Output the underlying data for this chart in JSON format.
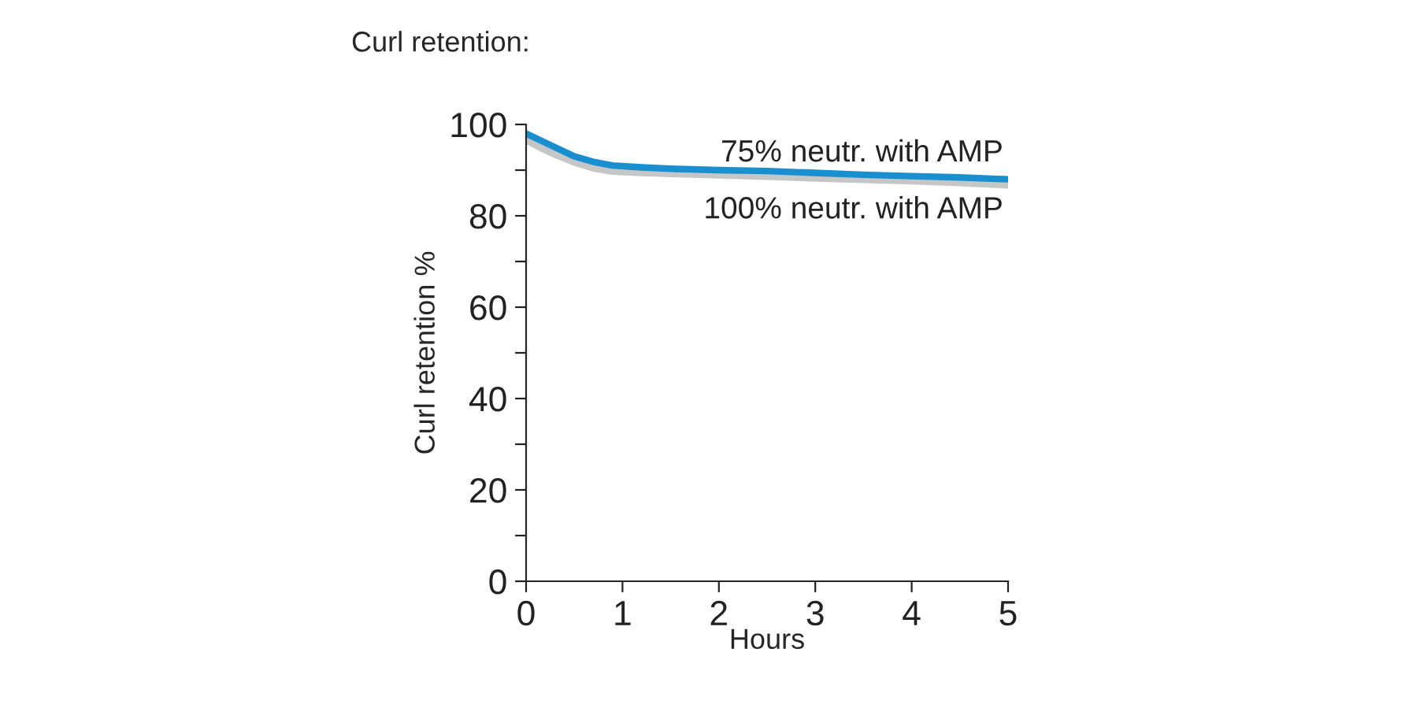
{
  "chart_data": {
    "type": "line",
    "title": "Curl retention:",
    "xlabel": "Hours",
    "ylabel": "Curl retention %",
    "xlim": [
      0,
      5
    ],
    "xticks": [
      0,
      1,
      2,
      3,
      4,
      5
    ],
    "ylim": [
      0,
      100
    ],
    "yticks": [
      0,
      {
        "value": 10,
        "label": null
      },
      20,
      {
        "value": 30,
        "label": null
      },
      40,
      {
        "value": 50,
        "label": null
      },
      60,
      {
        "value": 70,
        "label": null
      },
      80,
      {
        "value": 90,
        "label": null
      },
      100
    ],
    "x": [
      0,
      0.15,
      0.3,
      0.5,
      0.7,
      0.9,
      1.2,
      1.5,
      2,
      2.5,
      3,
      3.5,
      4,
      4.5,
      5
    ],
    "series": [
      {
        "name": "75% neutr. with AMP",
        "color": "#1a8fd0",
        "values": [
          98,
          96.5,
          95,
          93,
          91.8,
          91,
          90.6,
          90.3,
          90,
          89.8,
          89.4,
          89,
          88.7,
          88.4,
          88
        ]
      },
      {
        "name": "100% neutr. with AMP",
        "color": "#c4c6c8",
        "values": [
          96.7,
          95,
          93.5,
          91.8,
          90.5,
          89.8,
          89.5,
          89.3,
          89,
          88.7,
          88.3,
          88,
          87.7,
          87.3,
          86.8
        ]
      }
    ],
    "legend": false,
    "grid": false,
    "marker": "none",
    "line_style": "solid"
  }
}
